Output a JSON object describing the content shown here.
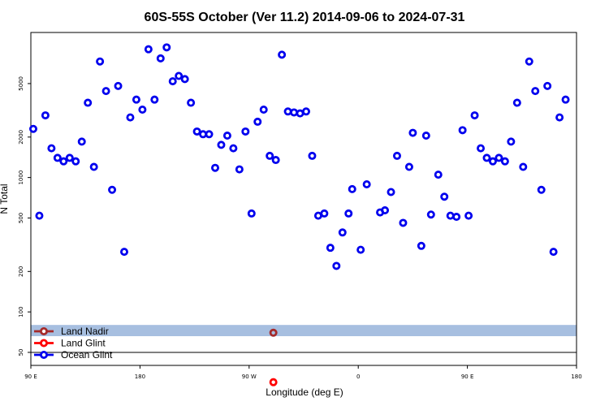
{
  "chart_data": {
    "type": "scatter",
    "title": "60S-55S October (Ver 11.2)   2014-09-06 to 2024-07-31",
    "xlabel": "Longitude (deg E)",
    "ylabel": "N Total",
    "xlim": [
      90,
      540
    ],
    "ylim_log": [
      40,
      12000
    ],
    "x_ticks": [
      {
        "value": 90,
        "label": "90 E"
      },
      {
        "value": 180,
        "label": "180"
      },
      {
        "value": 270,
        "label": "90 W"
      },
      {
        "value": 360,
        "label": "0"
      },
      {
        "value": 450,
        "label": "90 E"
      },
      {
        "value": 540,
        "label": "180"
      }
    ],
    "y_ticks": [
      {
        "value": 50,
        "label": "50"
      },
      {
        "value": 100,
        "label": "100"
      },
      {
        "value": 200,
        "label": "200"
      },
      {
        "value": 500,
        "label": "500"
      },
      {
        "value": 1000,
        "label": "1000"
      },
      {
        "value": 2000,
        "label": "2000"
      },
      {
        "value": 5000,
        "label": "5000"
      }
    ],
    "band_range": [
      66,
      80
    ],
    "band_color": "#a7bfe0",
    "divider_y": 50,
    "grid": false,
    "legend_placement": "bottom-left",
    "series": [
      {
        "name": "Land Nadir",
        "color": "#a52a2a",
        "points": [
          [
            290,
            70
          ]
        ]
      },
      {
        "name": "Land Glint",
        "color": "#ff0000",
        "points": [
          [
            290,
            30
          ]
        ]
      },
      {
        "name": "Ocean Glint",
        "color": "#0000ee",
        "points": [
          [
            92,
            2300
          ],
          [
            97,
            520
          ],
          [
            102,
            2900
          ],
          [
            107,
            1650
          ],
          [
            112,
            1400
          ],
          [
            117,
            1320
          ],
          [
            122,
            1400
          ],
          [
            127,
            1320
          ],
          [
            132,
            1850
          ],
          [
            137,
            3600
          ],
          [
            142,
            1200
          ],
          [
            147,
            7300
          ],
          [
            152,
            4400
          ],
          [
            157,
            810
          ],
          [
            162,
            4800
          ],
          [
            167,
            280
          ],
          [
            172,
            2800
          ],
          [
            177,
            3800
          ],
          [
            182,
            3200
          ],
          [
            187,
            9000
          ],
          [
            192,
            3800
          ],
          [
            197,
            7700
          ],
          [
            202,
            9300
          ],
          [
            207,
            5200
          ],
          [
            212,
            5700
          ],
          [
            217,
            5400
          ],
          [
            222,
            3600
          ],
          [
            227,
            2200
          ],
          [
            232,
            2100
          ],
          [
            237,
            2100
          ],
          [
            242,
            1180
          ],
          [
            247,
            1750
          ],
          [
            252,
            2050
          ],
          [
            257,
            1650
          ],
          [
            262,
            1150
          ],
          [
            267,
            2200
          ],
          [
            272,
            540
          ],
          [
            277,
            2600
          ],
          [
            282,
            3200
          ],
          [
            287,
            1450
          ],
          [
            292,
            1350
          ],
          [
            297,
            8200
          ],
          [
            302,
            3100
          ],
          [
            307,
            3050
          ],
          [
            312,
            3000
          ],
          [
            317,
            3100
          ],
          [
            322,
            1450
          ],
          [
            327,
            520
          ],
          [
            332,
            540
          ],
          [
            337,
            300
          ],
          [
            342,
            220
          ],
          [
            347,
            390
          ],
          [
            352,
            540
          ],
          [
            355,
            820
          ],
          [
            362,
            290
          ],
          [
            367,
            890
          ],
          [
            378,
            550
          ],
          [
            382,
            570
          ],
          [
            387,
            780
          ],
          [
            392,
            1450
          ],
          [
            397,
            460
          ],
          [
            402,
            1200
          ],
          [
            405,
            2150
          ],
          [
            412,
            310
          ],
          [
            416,
            2050
          ],
          [
            420,
            530
          ],
          [
            426,
            1050
          ],
          [
            431,
            720
          ],
          [
            436,
            520
          ],
          [
            441,
            510
          ],
          [
            446,
            2250
          ],
          [
            451,
            520
          ],
          [
            456,
            2900
          ],
          [
            461,
            1650
          ],
          [
            466,
            1400
          ],
          [
            471,
            1320
          ],
          [
            476,
            1400
          ],
          [
            481,
            1320
          ],
          [
            486,
            1850
          ],
          [
            491,
            3600
          ],
          [
            496,
            1200
          ],
          [
            501,
            7300
          ],
          [
            506,
            4400
          ],
          [
            511,
            810
          ],
          [
            516,
            4800
          ],
          [
            521,
            280
          ],
          [
            526,
            2800
          ],
          [
            531,
            3800
          ]
        ]
      }
    ]
  }
}
